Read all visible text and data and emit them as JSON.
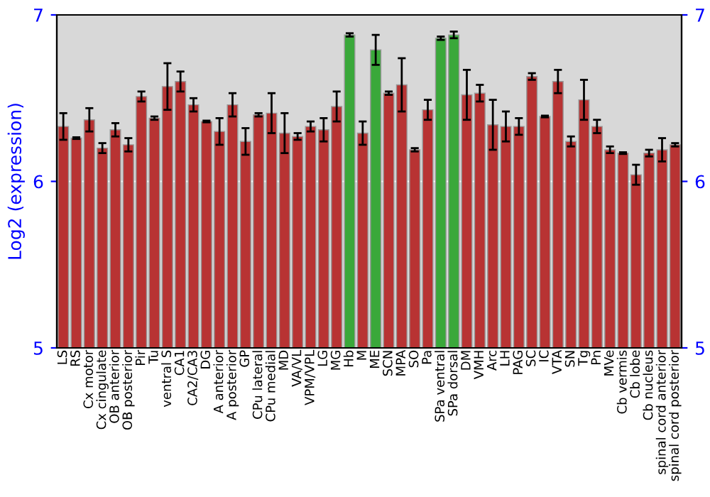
{
  "chart_data": {
    "type": "bar",
    "ylabel": "Log2 (expression)",
    "categories": [
      "LS",
      "RS",
      "Cx motor",
      "Cx cingulate",
      "OB anterior",
      "OB posterior",
      "Pir",
      "Tu",
      "ventral S",
      "CA1",
      "CA2/CA3",
      "DG",
      "A anterior",
      "A posterior",
      "GP",
      "CPu lateral",
      "CPu medial",
      "MD",
      "VA/VL",
      "VPM/VPL",
      "LG",
      "MG",
      "Hb",
      "M",
      "ME",
      "SCN",
      "MPA",
      "SO",
      "Pa",
      "SPa ventral",
      "SPa dorsal",
      "DM",
      "VMH",
      "Arc",
      "LH",
      "PAG",
      "SC",
      "IC",
      "VTA",
      "SN",
      "Tg",
      "Pn",
      "MVe",
      "Cb vermis",
      "Cb lobe",
      "Cb nucleus",
      "spinal cord anterior",
      "spinal cord posterior"
    ],
    "values": [
      6.33,
      6.26,
      6.37,
      6.2,
      6.31,
      6.22,
      6.51,
      6.38,
      6.57,
      6.6,
      6.46,
      6.36,
      6.3,
      6.46,
      6.24,
      6.4,
      6.41,
      6.29,
      6.27,
      6.33,
      6.31,
      6.45,
      6.88,
      6.29,
      6.79,
      6.53,
      6.58,
      6.19,
      6.43,
      6.86,
      6.88,
      6.52,
      6.53,
      6.34,
      6.33,
      6.33,
      6.63,
      6.39,
      6.6,
      6.24,
      6.49,
      6.33,
      6.19,
      6.17,
      6.04,
      6.17,
      6.19,
      6.22
    ],
    "errors": [
      0.08,
      0.005,
      0.07,
      0.03,
      0.04,
      0.04,
      0.03,
      0.01,
      0.14,
      0.06,
      0.04,
      0.005,
      0.08,
      0.07,
      0.08,
      0.01,
      0.12,
      0.12,
      0.02,
      0.03,
      0.07,
      0.09,
      0.01,
      0.07,
      0.09,
      0.01,
      0.16,
      0.01,
      0.06,
      0.01,
      0.02,
      0.15,
      0.05,
      0.15,
      0.09,
      0.05,
      0.02,
      0.005,
      0.07,
      0.03,
      0.12,
      0.04,
      0.02,
      0.005,
      0.06,
      0.02,
      0.07,
      0.01
    ],
    "colors": [
      "#b83333",
      "#b83333",
      "#b83333",
      "#b83333",
      "#b83333",
      "#b83333",
      "#b83333",
      "#b83333",
      "#b83333",
      "#b83333",
      "#b83333",
      "#b83333",
      "#b83333",
      "#b83333",
      "#b83333",
      "#b83333",
      "#b83333",
      "#b83333",
      "#b83333",
      "#b83333",
      "#b83333",
      "#b83333",
      "#3aa83a",
      "#b83333",
      "#3aa83a",
      "#b83333",
      "#b83333",
      "#b83333",
      "#b83333",
      "#3aa83a",
      "#3aa83a",
      "#b83333",
      "#b83333",
      "#b83333",
      "#b83333",
      "#b83333",
      "#b83333",
      "#b83333",
      "#b83333",
      "#b83333",
      "#b83333",
      "#b83333",
      "#b83333",
      "#b83333",
      "#b83333",
      "#b83333",
      "#b83333",
      "#b83333"
    ],
    "ylim": [
      5,
      7
    ],
    "yticks": [
      5,
      6,
      7
    ],
    "y2lim": [
      5,
      7
    ],
    "y2ticks": [
      5,
      6,
      7
    ],
    "grid": "y"
  }
}
